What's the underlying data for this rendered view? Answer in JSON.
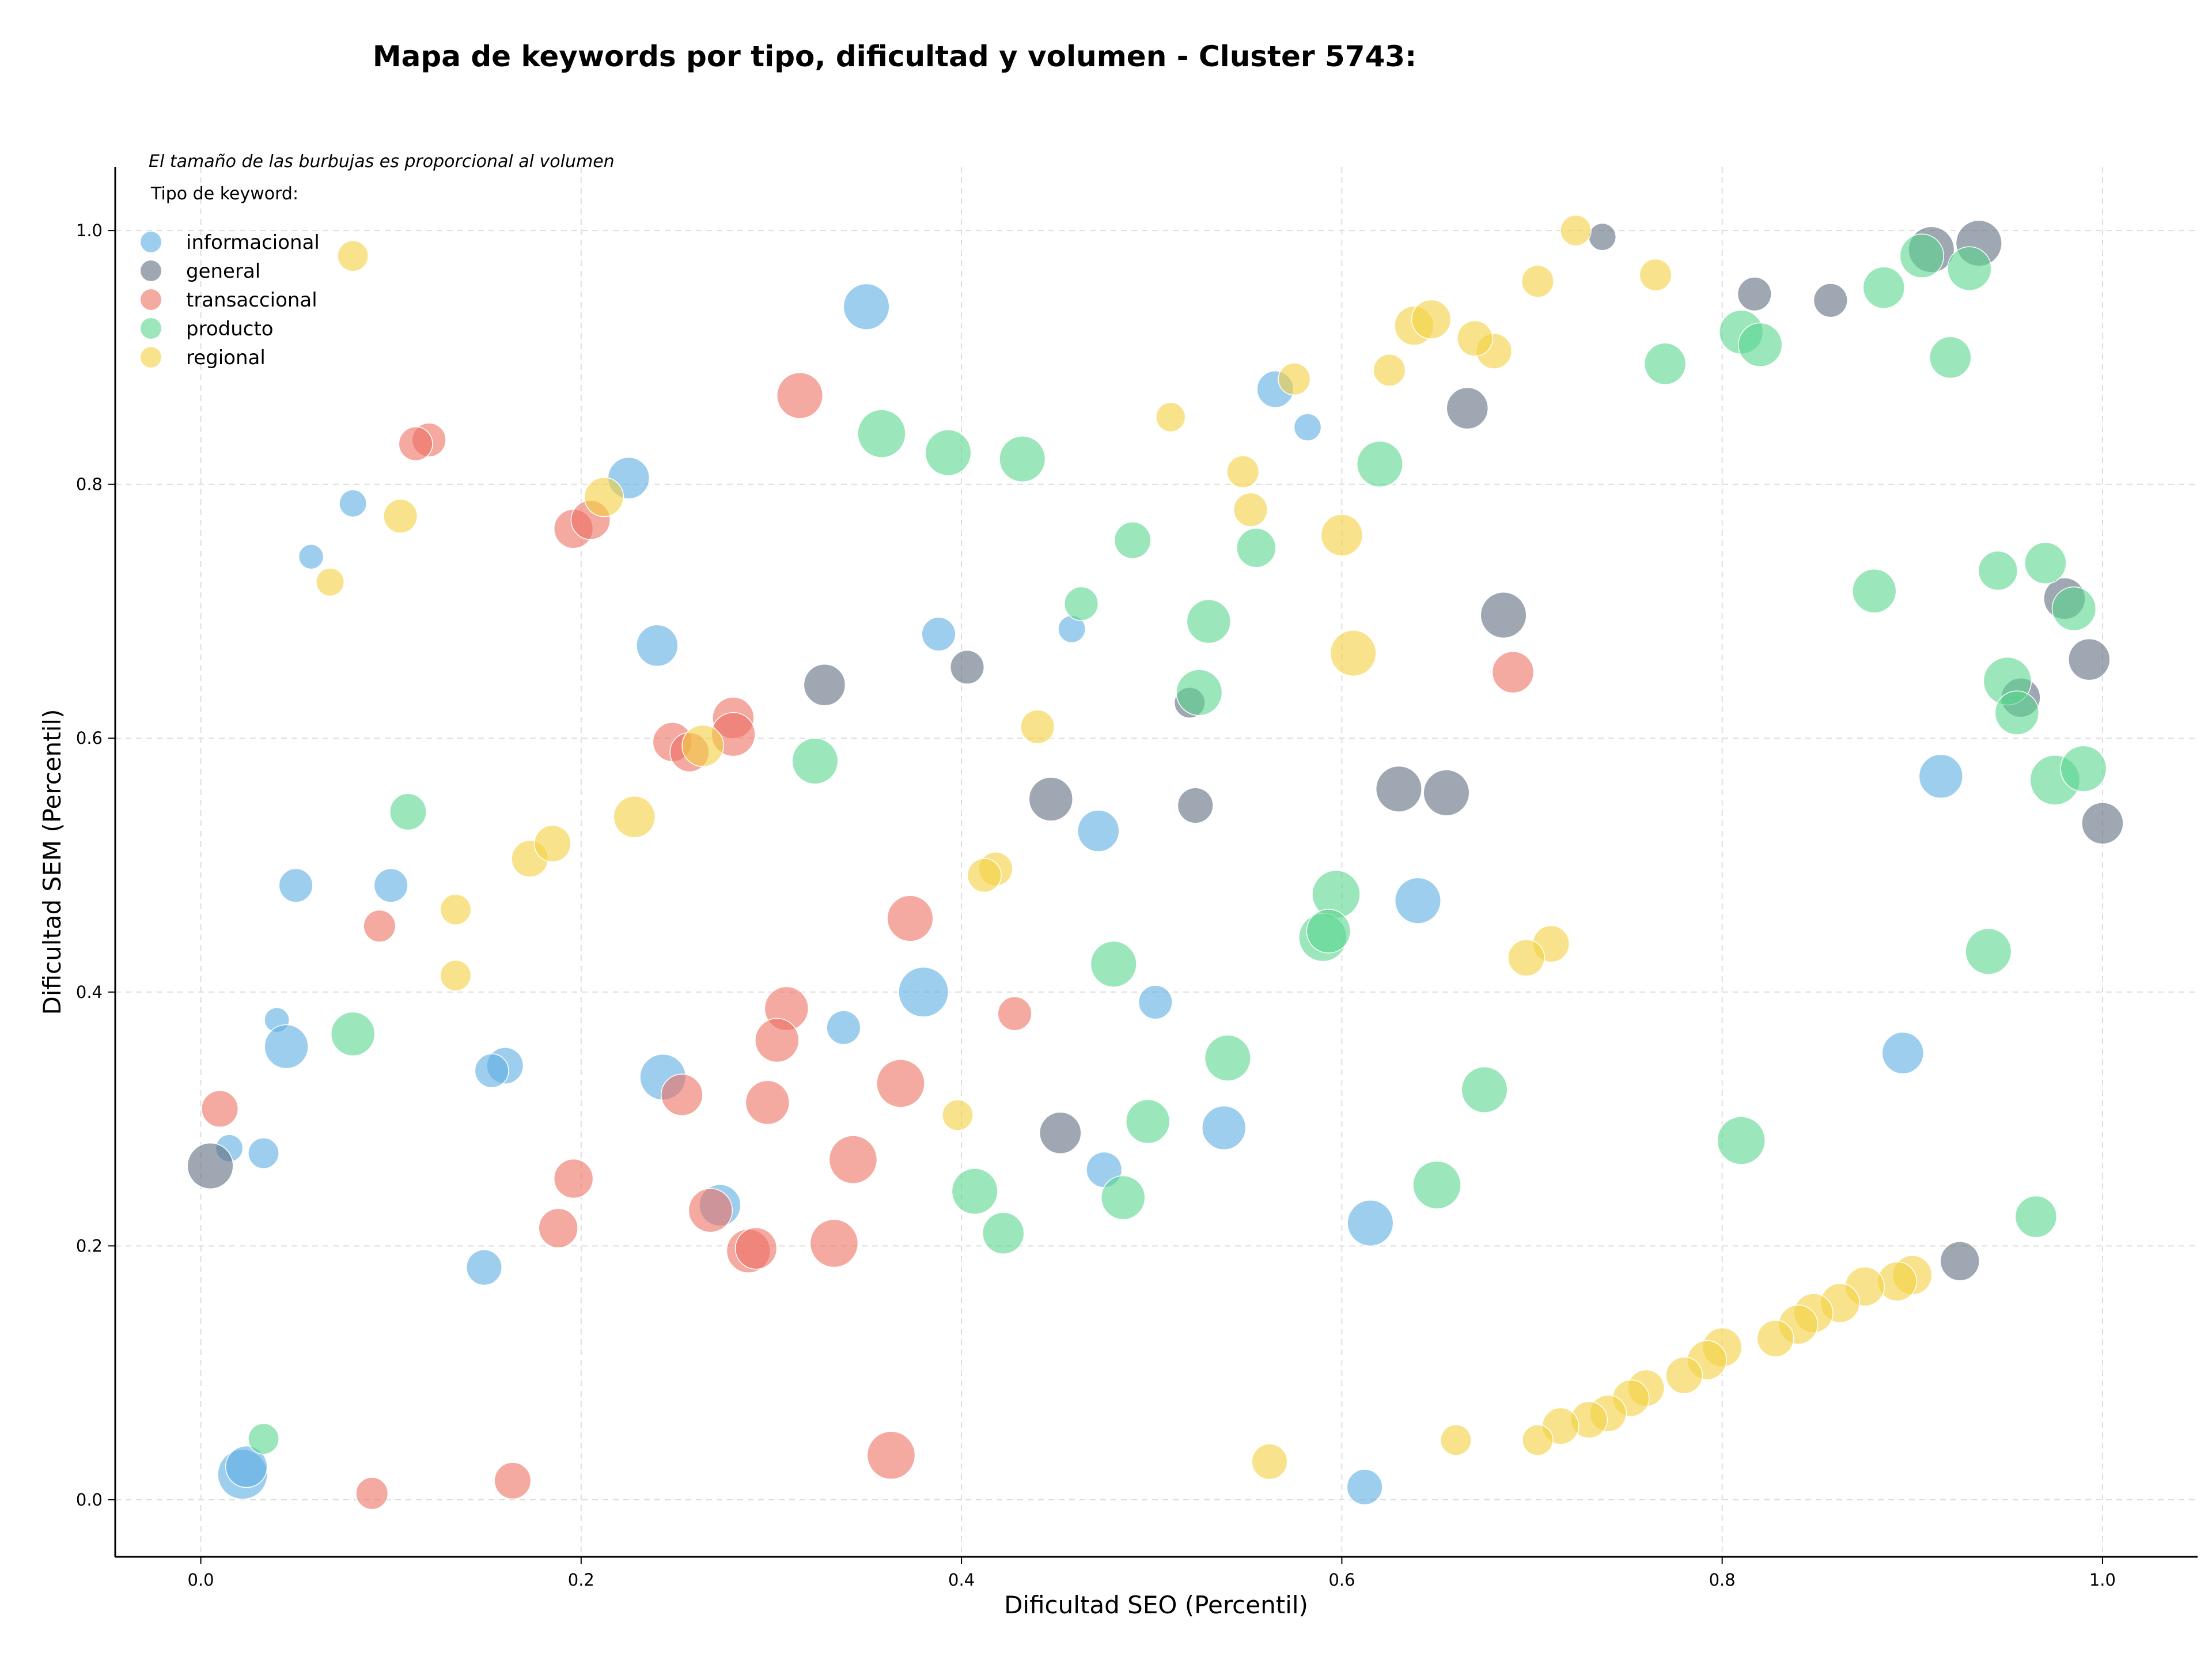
{
  "chart_data": {
    "type": "scatter",
    "title": "Mapa de keywords por tipo, dificultad y volumen - Cluster 5743:",
    "xlabel": "Dificultad SEO (Percentil)",
    "ylabel": "Dificultad SEM (Percentil)",
    "xlim": [
      -0.045,
      1.05
    ],
    "ylim": [
      -0.045,
      1.05
    ],
    "xticks": [
      "0.0",
      "0.2",
      "0.4",
      "0.6",
      "0.8",
      "1.0"
    ],
    "yticks": [
      "0.0",
      "0.2",
      "0.4",
      "0.6",
      "0.8",
      "1.0"
    ],
    "grid": true,
    "note": "El tamaño de las burbujas es proporcional al volumen",
    "legend": {
      "title": "Tipo de keyword:",
      "placement": "top-left"
    },
    "series": [
      {
        "name": "informacional",
        "color": "#5DADE2",
        "points": [
          {
            "x": 0.35,
            "y": 0.94,
            "size": 5
          },
          {
            "x": 0.565,
            "y": 0.875,
            "size": 3
          },
          {
            "x": 0.582,
            "y": 0.845,
            "size": 1.5
          },
          {
            "x": 0.225,
            "y": 0.805,
            "size": 4
          },
          {
            "x": 0.08,
            "y": 0.785,
            "size": 1.5
          },
          {
            "x": 0.058,
            "y": 0.743,
            "size": 1.2
          },
          {
            "x": 0.24,
            "y": 0.673,
            "size": 4
          },
          {
            "x": 0.388,
            "y": 0.682,
            "size": 2.5
          },
          {
            "x": 0.458,
            "y": 0.686,
            "size": 1.5
          },
          {
            "x": 0.915,
            "y": 0.57,
            "size": 4.5
          },
          {
            "x": 0.472,
            "y": 0.527,
            "size": 4
          },
          {
            "x": 0.05,
            "y": 0.484,
            "size": 2.5
          },
          {
            "x": 0.1,
            "y": 0.484,
            "size": 2.5
          },
          {
            "x": 0.64,
            "y": 0.472,
            "size": 5
          },
          {
            "x": 0.38,
            "y": 0.4,
            "size": 6
          },
          {
            "x": 0.502,
            "y": 0.392,
            "size": 2.5
          },
          {
            "x": 0.338,
            "y": 0.372,
            "size": 2.5
          },
          {
            "x": 0.04,
            "y": 0.378,
            "size": 1.2
          },
          {
            "x": 0.045,
            "y": 0.357,
            "size": 4.5
          },
          {
            "x": 0.16,
            "y": 0.342,
            "size": 3
          },
          {
            "x": 0.153,
            "y": 0.338,
            "size": 2.5
          },
          {
            "x": 0.243,
            "y": 0.333,
            "size": 5
          },
          {
            "x": 0.895,
            "y": 0.352,
            "size": 4
          },
          {
            "x": 0.538,
            "y": 0.293,
            "size": 4.5
          },
          {
            "x": 0.015,
            "y": 0.277,
            "size": 1.5
          },
          {
            "x": 0.033,
            "y": 0.273,
            "size": 2
          },
          {
            "x": 0.475,
            "y": 0.26,
            "size": 2.8
          },
          {
            "x": 0.273,
            "y": 0.232,
            "size": 4
          },
          {
            "x": 0.615,
            "y": 0.218,
            "size": 5
          },
          {
            "x": 0.149,
            "y": 0.183,
            "size": 2.8
          },
          {
            "x": 0.022,
            "y": 0.02,
            "size": 6
          },
          {
            "x": 0.024,
            "y": 0.026,
            "size": 4
          },
          {
            "x": 0.612,
            "y": 0.01,
            "size": 2.8
          }
        ]
      },
      {
        "name": "general",
        "color": "#5D6D7E",
        "points": [
          {
            "x": 0.91,
            "y": 0.985,
            "size": 5
          },
          {
            "x": 0.935,
            "y": 0.99,
            "size": 5
          },
          {
            "x": 0.737,
            "y": 0.995,
            "size": 1.5
          },
          {
            "x": 0.817,
            "y": 0.95,
            "size": 2.5
          },
          {
            "x": 0.857,
            "y": 0.945,
            "size": 2.5
          },
          {
            "x": 0.666,
            "y": 0.86,
            "size": 4
          },
          {
            "x": 0.685,
            "y": 0.697,
            "size": 5
          },
          {
            "x": 0.98,
            "y": 0.71,
            "size": 4
          },
          {
            "x": 0.993,
            "y": 0.662,
            "size": 4
          },
          {
            "x": 0.328,
            "y": 0.642,
            "size": 4
          },
          {
            "x": 0.403,
            "y": 0.656,
            "size": 2.5
          },
          {
            "x": 0.52,
            "y": 0.628,
            "size": 2
          },
          {
            "x": 0.957,
            "y": 0.632,
            "size": 3.5
          },
          {
            "x": 0.63,
            "y": 0.56,
            "size": 5
          },
          {
            "x": 0.655,
            "y": 0.557,
            "size": 5
          },
          {
            "x": 0.447,
            "y": 0.552,
            "size": 4.5
          },
          {
            "x": 0.523,
            "y": 0.547,
            "size": 2.8
          },
          {
            "x": 1.0,
            "y": 0.533,
            "size": 4
          },
          {
            "x": 0.452,
            "y": 0.289,
            "size": 4
          },
          {
            "x": 0.005,
            "y": 0.263,
            "size": 5
          },
          {
            "x": 0.925,
            "y": 0.188,
            "size": 3.5
          }
        ]
      },
      {
        "name": "transaccional",
        "color": "#EC7063",
        "points": [
          {
            "x": 0.315,
            "y": 0.87,
            "size": 5
          },
          {
            "x": 0.12,
            "y": 0.835,
            "size": 2.5
          },
          {
            "x": 0.113,
            "y": 0.832,
            "size": 2.5
          },
          {
            "x": 0.196,
            "y": 0.765,
            "size": 3.5
          },
          {
            "x": 0.205,
            "y": 0.772,
            "size": 3.5
          },
          {
            "x": 0.28,
            "y": 0.616,
            "size": 4
          },
          {
            "x": 0.28,
            "y": 0.603,
            "size": 4.5
          },
          {
            "x": 0.248,
            "y": 0.597,
            "size": 3.5
          },
          {
            "x": 0.257,
            "y": 0.589,
            "size": 3.5
          },
          {
            "x": 0.69,
            "y": 0.652,
            "size": 4
          },
          {
            "x": 0.373,
            "y": 0.458,
            "size": 5
          },
          {
            "x": 0.094,
            "y": 0.452,
            "size": 2.2
          },
          {
            "x": 0.308,
            "y": 0.387,
            "size": 4.5
          },
          {
            "x": 0.303,
            "y": 0.362,
            "size": 4.5
          },
          {
            "x": 0.428,
            "y": 0.383,
            "size": 2.5
          },
          {
            "x": 0.01,
            "y": 0.308,
            "size": 3
          },
          {
            "x": 0.253,
            "y": 0.319,
            "size": 4
          },
          {
            "x": 0.298,
            "y": 0.313,
            "size": 4.5
          },
          {
            "x": 0.368,
            "y": 0.328,
            "size": 5.5
          },
          {
            "x": 0.343,
            "y": 0.268,
            "size": 5.5
          },
          {
            "x": 0.196,
            "y": 0.253,
            "size": 3.5
          },
          {
            "x": 0.268,
            "y": 0.228,
            "size": 4.5
          },
          {
            "x": 0.188,
            "y": 0.214,
            "size": 3.5
          },
          {
            "x": 0.333,
            "y": 0.202,
            "size": 5.5
          },
          {
            "x": 0.288,
            "y": 0.196,
            "size": 4.5
          },
          {
            "x": 0.292,
            "y": 0.198,
            "size": 4
          },
          {
            "x": 0.363,
            "y": 0.035,
            "size": 5.5
          },
          {
            "x": 0.09,
            "y": 0.005,
            "size": 2.2
          },
          {
            "x": 0.164,
            "y": 0.015,
            "size": 3
          }
        ]
      },
      {
        "name": "producto",
        "color": "#58D68D",
        "points": [
          {
            "x": 0.885,
            "y": 0.955,
            "size": 4
          },
          {
            "x": 0.905,
            "y": 0.98,
            "size": 4.5
          },
          {
            "x": 0.93,
            "y": 0.97,
            "size": 4.5
          },
          {
            "x": 0.81,
            "y": 0.92,
            "size": 4.5
          },
          {
            "x": 0.82,
            "y": 0.91,
            "size": 4.5
          },
          {
            "x": 0.77,
            "y": 0.895,
            "size": 4
          },
          {
            "x": 0.92,
            "y": 0.9,
            "size": 4
          },
          {
            "x": 0.358,
            "y": 0.84,
            "size": 5.5
          },
          {
            "x": 0.393,
            "y": 0.825,
            "size": 5
          },
          {
            "x": 0.432,
            "y": 0.82,
            "size": 5
          },
          {
            "x": 0.62,
            "y": 0.816,
            "size": 5
          },
          {
            "x": 0.49,
            "y": 0.756,
            "size": 3
          },
          {
            "x": 0.555,
            "y": 0.75,
            "size": 3.5
          },
          {
            "x": 0.463,
            "y": 0.706,
            "size": 2.5
          },
          {
            "x": 0.53,
            "y": 0.692,
            "size": 4.5
          },
          {
            "x": 0.525,
            "y": 0.636,
            "size": 5
          },
          {
            "x": 0.88,
            "y": 0.716,
            "size": 4.5
          },
          {
            "x": 0.945,
            "y": 0.732,
            "size": 3.5
          },
          {
            "x": 0.97,
            "y": 0.738,
            "size": 4
          },
          {
            "x": 0.985,
            "y": 0.702,
            "size": 4.5
          },
          {
            "x": 0.95,
            "y": 0.645,
            "size": 5.5
          },
          {
            "x": 0.955,
            "y": 0.62,
            "size": 4.5
          },
          {
            "x": 0.975,
            "y": 0.567,
            "size": 6
          },
          {
            "x": 0.99,
            "y": 0.576,
            "size": 5
          },
          {
            "x": 0.323,
            "y": 0.582,
            "size": 5
          },
          {
            "x": 0.109,
            "y": 0.542,
            "size": 3
          },
          {
            "x": 0.597,
            "y": 0.477,
            "size": 5.5
          },
          {
            "x": 0.59,
            "y": 0.443,
            "size": 5.5
          },
          {
            "x": 0.593,
            "y": 0.448,
            "size": 4.5
          },
          {
            "x": 0.48,
            "y": 0.422,
            "size": 5
          },
          {
            "x": 0.94,
            "y": 0.432,
            "size": 5
          },
          {
            "x": 0.08,
            "y": 0.367,
            "size": 4.5
          },
          {
            "x": 0.54,
            "y": 0.348,
            "size": 5
          },
          {
            "x": 0.675,
            "y": 0.323,
            "size": 5
          },
          {
            "x": 0.498,
            "y": 0.298,
            "size": 4.5
          },
          {
            "x": 0.81,
            "y": 0.283,
            "size": 5.5
          },
          {
            "x": 0.65,
            "y": 0.248,
            "size": 5.5
          },
          {
            "x": 0.407,
            "y": 0.243,
            "size": 5
          },
          {
            "x": 0.485,
            "y": 0.238,
            "size": 4.5
          },
          {
            "x": 0.422,
            "y": 0.21,
            "size": 4
          },
          {
            "x": 0.965,
            "y": 0.223,
            "size": 4
          },
          {
            "x": 0.033,
            "y": 0.048,
            "size": 2
          }
        ]
      },
      {
        "name": "regional",
        "color": "#F4D03F",
        "points": [
          {
            "x": 0.723,
            "y": 1.0,
            "size": 2
          },
          {
            "x": 0.765,
            "y": 0.965,
            "size": 2.2
          },
          {
            "x": 0.703,
            "y": 0.96,
            "size": 2.2
          },
          {
            "x": 0.08,
            "y": 0.98,
            "size": 2
          },
          {
            "x": 0.638,
            "y": 0.925,
            "size": 3.5
          },
          {
            "x": 0.647,
            "y": 0.93,
            "size": 3.5
          },
          {
            "x": 0.68,
            "y": 0.905,
            "size": 2.8
          },
          {
            "x": 0.67,
            "y": 0.915,
            "size": 2.8
          },
          {
            "x": 0.625,
            "y": 0.89,
            "size": 2.2
          },
          {
            "x": 0.575,
            "y": 0.883,
            "size": 2.2
          },
          {
            "x": 0.51,
            "y": 0.853,
            "size": 1.8
          },
          {
            "x": 0.548,
            "y": 0.81,
            "size": 2.2
          },
          {
            "x": 0.552,
            "y": 0.78,
            "size": 2.5
          },
          {
            "x": 0.6,
            "y": 0.76,
            "size": 4
          },
          {
            "x": 0.105,
            "y": 0.775,
            "size": 2.5
          },
          {
            "x": 0.212,
            "y": 0.79,
            "size": 3.5
          },
          {
            "x": 0.068,
            "y": 0.723,
            "size": 1.6
          },
          {
            "x": 0.606,
            "y": 0.667,
            "size": 5
          },
          {
            "x": 0.44,
            "y": 0.609,
            "size": 2.5
          },
          {
            "x": 0.264,
            "y": 0.594,
            "size": 4
          },
          {
            "x": 0.173,
            "y": 0.505,
            "size": 3
          },
          {
            "x": 0.185,
            "y": 0.517,
            "size": 3
          },
          {
            "x": 0.228,
            "y": 0.538,
            "size": 4
          },
          {
            "x": 0.418,
            "y": 0.497,
            "size": 2.5
          },
          {
            "x": 0.412,
            "y": 0.492,
            "size": 2.5
          },
          {
            "x": 0.134,
            "y": 0.465,
            "size": 2
          },
          {
            "x": 0.134,
            "y": 0.413,
            "size": 2
          },
          {
            "x": 0.71,
            "y": 0.438,
            "size": 3
          },
          {
            "x": 0.697,
            "y": 0.427,
            "size": 3
          },
          {
            "x": 0.398,
            "y": 0.303,
            "size": 2
          },
          {
            "x": 0.9,
            "y": 0.177,
            "size": 3.5
          },
          {
            "x": 0.892,
            "y": 0.172,
            "size": 3.5
          },
          {
            "x": 0.875,
            "y": 0.168,
            "size": 3.5
          },
          {
            "x": 0.862,
            "y": 0.155,
            "size": 3.5
          },
          {
            "x": 0.848,
            "y": 0.147,
            "size": 3.5
          },
          {
            "x": 0.84,
            "y": 0.138,
            "size": 3.5
          },
          {
            "x": 0.828,
            "y": 0.127,
            "size": 3
          },
          {
            "x": 0.8,
            "y": 0.12,
            "size": 3.5
          },
          {
            "x": 0.792,
            "y": 0.11,
            "size": 3.5
          },
          {
            "x": 0.78,
            "y": 0.098,
            "size": 3
          },
          {
            "x": 0.76,
            "y": 0.088,
            "size": 3
          },
          {
            "x": 0.752,
            "y": 0.08,
            "size": 3
          },
          {
            "x": 0.74,
            "y": 0.068,
            "size": 3
          },
          {
            "x": 0.73,
            "y": 0.063,
            "size": 3
          },
          {
            "x": 0.715,
            "y": 0.058,
            "size": 3
          },
          {
            "x": 0.703,
            "y": 0.047,
            "size": 2
          },
          {
            "x": 0.66,
            "y": 0.047,
            "size": 2
          },
          {
            "x": 0.562,
            "y": 0.03,
            "size": 2.8
          }
        ]
      }
    ]
  }
}
